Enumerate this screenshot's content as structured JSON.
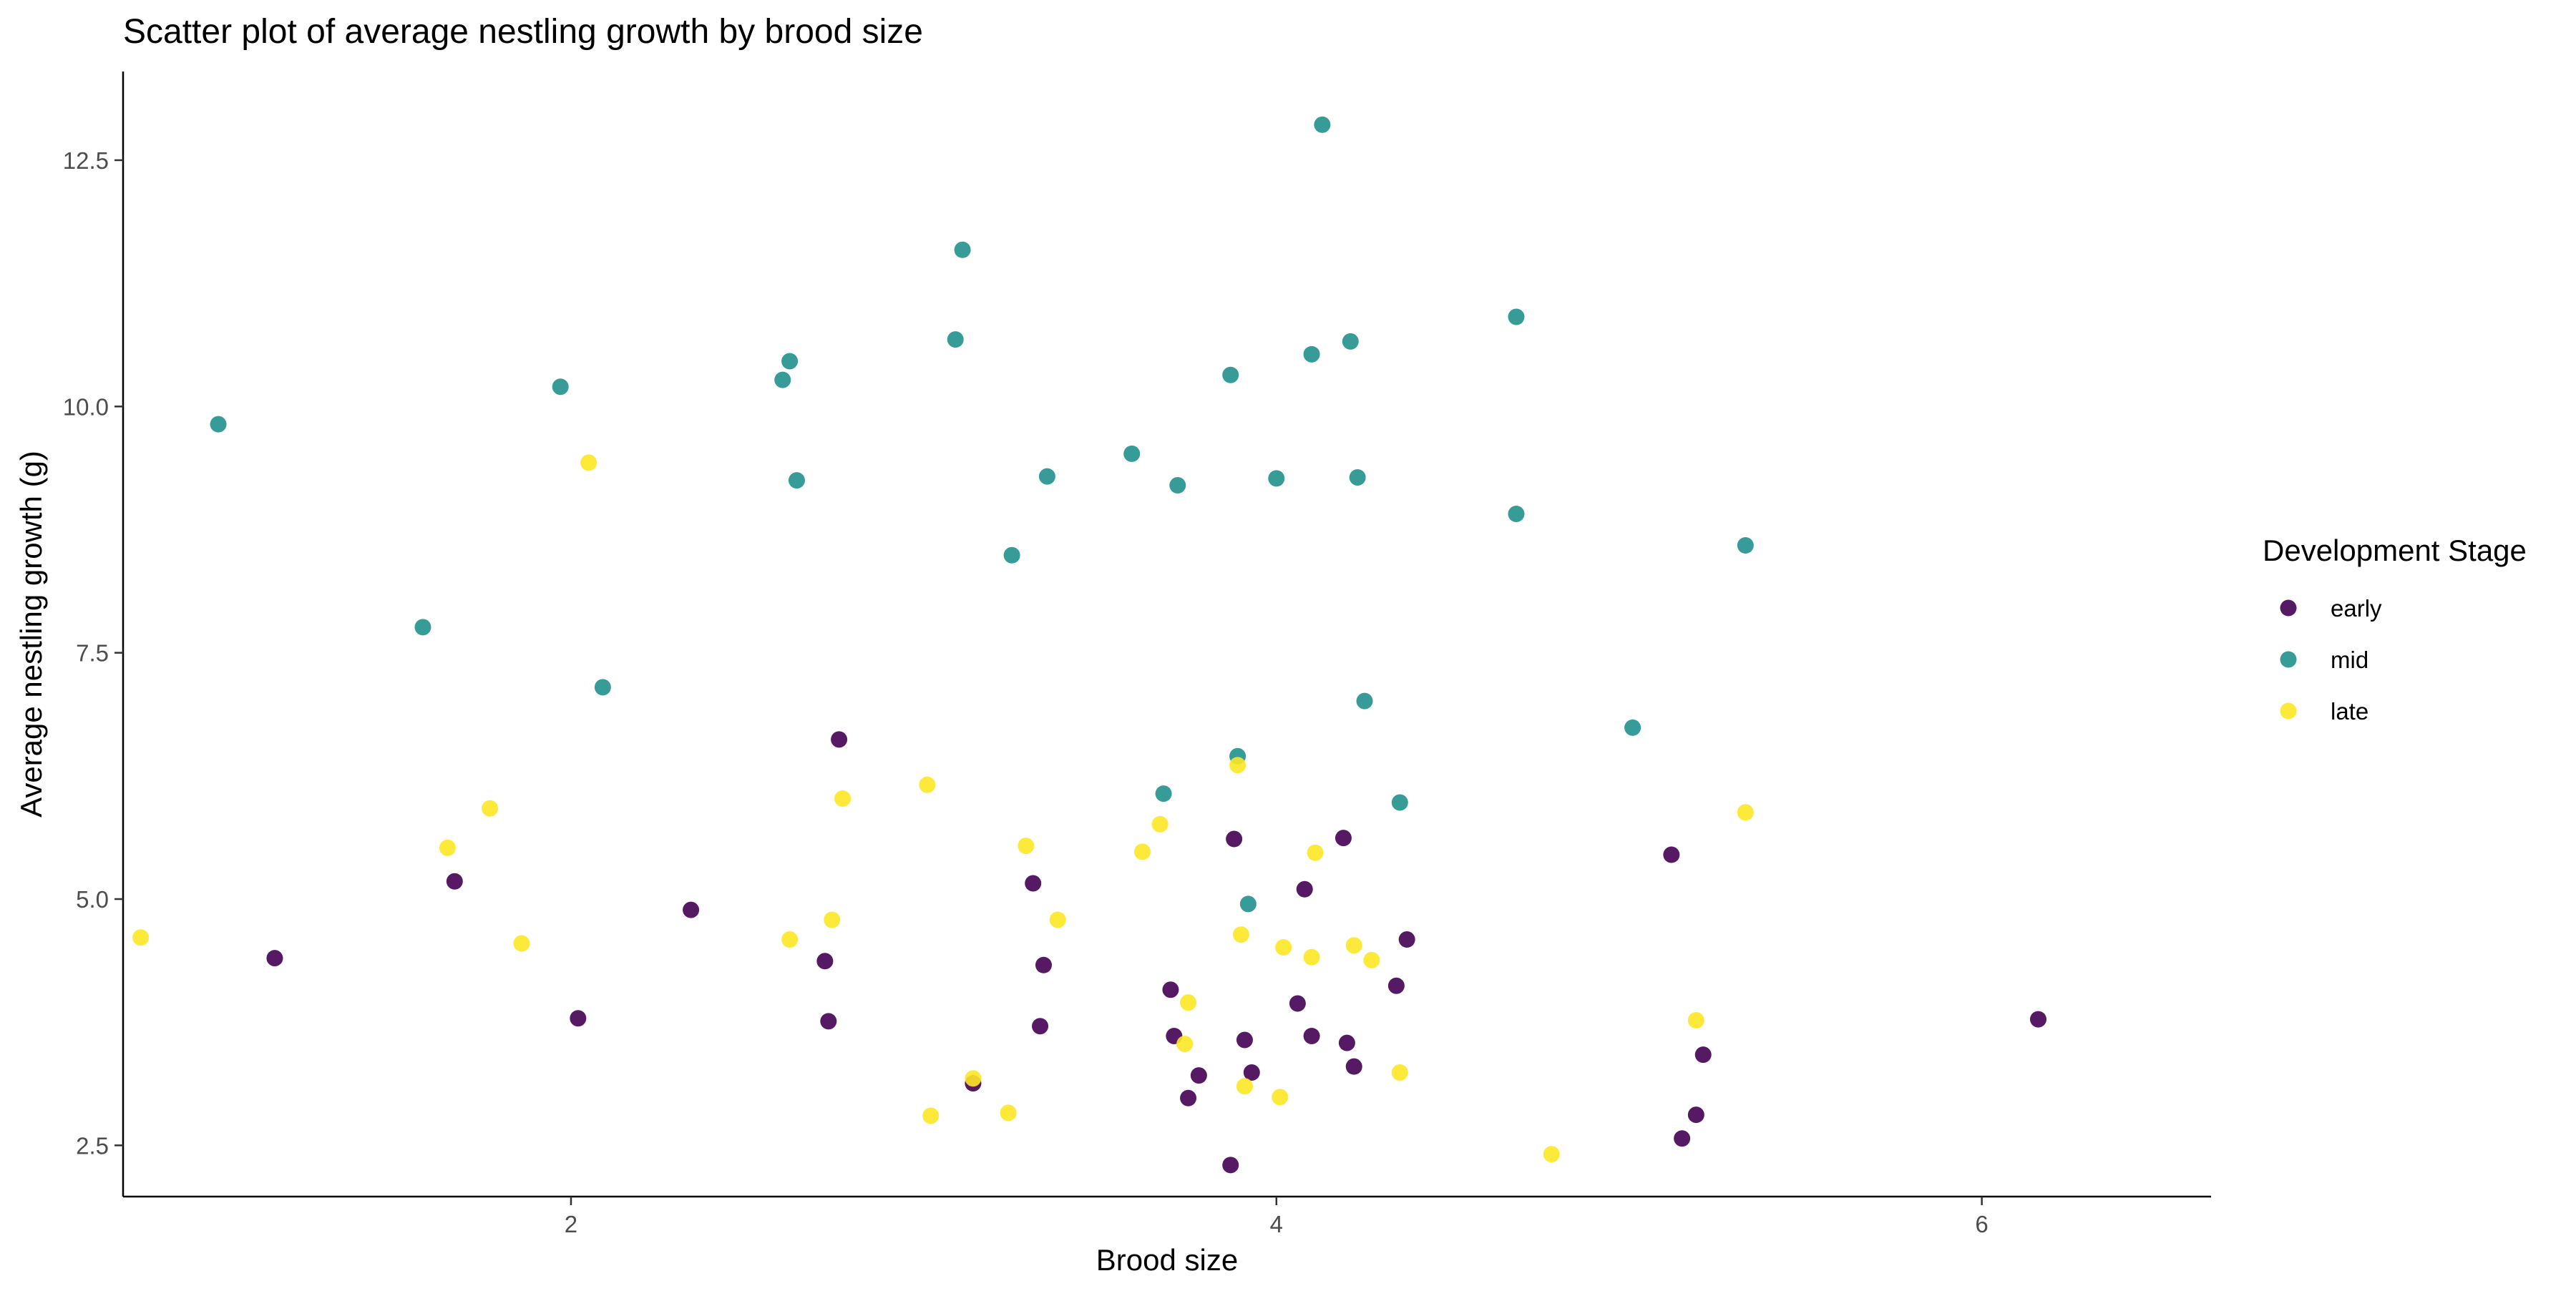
{
  "chart_data": {
    "type": "scatter",
    "title": "Scatter plot of average nestling growth by brood size",
    "xlabel": "Brood size",
    "ylabel": "Average nestling growth (g)",
    "xlim": [
      0.73,
      6.65
    ],
    "ylim": [
      1.98,
      13.4
    ],
    "x_ticks": [
      2,
      4,
      6
    ],
    "y_ticks": [
      2.5,
      5.0,
      7.5,
      10.0,
      12.5
    ],
    "x_tick_labels": [
      "2",
      "4",
      "6"
    ],
    "y_tick_labels": [
      "2.5",
      "5.0",
      "7.5",
      "10.0",
      "12.5"
    ],
    "grid": false,
    "legend": {
      "title": "Development Stage",
      "position": "right",
      "entries": [
        "early",
        "mid",
        "late"
      ]
    },
    "colors": {
      "early": "#440154",
      "mid": "#21908C",
      "late": "#FDE725"
    },
    "series": [
      {
        "name": "early",
        "points": [
          [
            1.16,
            4.4
          ],
          [
            1.67,
            5.18
          ],
          [
            2.02,
            3.79
          ],
          [
            2.34,
            4.89
          ],
          [
            2.72,
            4.37
          ],
          [
            2.73,
            3.76
          ],
          [
            2.76,
            6.62
          ],
          [
            3.14,
            3.13
          ],
          [
            3.31,
            5.16
          ],
          [
            3.33,
            3.71
          ],
          [
            3.34,
            4.33
          ],
          [
            3.7,
            4.08
          ],
          [
            3.71,
            3.61
          ],
          [
            3.75,
            2.98
          ],
          [
            3.78,
            3.21
          ],
          [
            3.87,
            2.3
          ],
          [
            3.88,
            5.61
          ],
          [
            3.91,
            3.57
          ],
          [
            3.93,
            3.24
          ],
          [
            4.06,
            3.94
          ],
          [
            4.08,
            5.1
          ],
          [
            4.1,
            3.61
          ],
          [
            4.19,
            5.62
          ],
          [
            4.2,
            3.54
          ],
          [
            4.22,
            3.3
          ],
          [
            4.34,
            4.12
          ],
          [
            4.37,
            4.59
          ],
          [
            5.12,
            5.45
          ],
          [
            5.15,
            2.57
          ],
          [
            5.19,
            2.81
          ],
          [
            5.21,
            3.42
          ],
          [
            6.16,
            3.78
          ]
        ]
      },
      {
        "name": "mid",
        "points": [
          [
            1.0,
            9.82
          ],
          [
            1.58,
            7.76
          ],
          [
            1.97,
            10.2
          ],
          [
            2.09,
            7.15
          ],
          [
            2.6,
            10.27
          ],
          [
            2.62,
            10.46
          ],
          [
            2.64,
            9.25
          ],
          [
            3.09,
            10.68
          ],
          [
            3.11,
            11.59
          ],
          [
            3.25,
            8.49
          ],
          [
            3.35,
            9.29
          ],
          [
            3.59,
            9.52
          ],
          [
            3.68,
            6.07
          ],
          [
            3.72,
            9.2
          ],
          [
            3.87,
            10.32
          ],
          [
            3.89,
            6.45
          ],
          [
            3.92,
            4.95
          ],
          [
            4.0,
            9.27
          ],
          [
            4.1,
            10.53
          ],
          [
            4.13,
            12.86
          ],
          [
            4.21,
            10.66
          ],
          [
            4.23,
            9.28
          ],
          [
            4.25,
            7.01
          ],
          [
            4.35,
            5.98
          ],
          [
            4.68,
            8.91
          ],
          [
            4.68,
            10.91
          ],
          [
            5.01,
            6.74
          ],
          [
            5.33,
            8.59
          ]
        ]
      },
      {
        "name": "late",
        "points": [
          [
            0.78,
            4.61
          ],
          [
            1.65,
            5.52
          ],
          [
            1.77,
            5.92
          ],
          [
            1.86,
            4.55
          ],
          [
            2.05,
            9.43
          ],
          [
            2.62,
            4.59
          ],
          [
            2.74,
            4.79
          ],
          [
            2.77,
            6.02
          ],
          [
            3.01,
            6.16
          ],
          [
            3.02,
            2.8
          ],
          [
            3.14,
            3.18
          ],
          [
            3.24,
            2.83
          ],
          [
            3.29,
            5.54
          ],
          [
            3.38,
            4.79
          ],
          [
            3.62,
            5.48
          ],
          [
            3.67,
            5.76
          ],
          [
            3.74,
            3.53
          ],
          [
            3.75,
            3.95
          ],
          [
            3.89,
            6.36
          ],
          [
            3.9,
            4.64
          ],
          [
            3.91,
            3.1
          ],
          [
            4.01,
            2.99
          ],
          [
            4.02,
            4.51
          ],
          [
            4.1,
            4.41
          ],
          [
            4.11,
            5.47
          ],
          [
            4.22,
            4.53
          ],
          [
            4.27,
            4.38
          ],
          [
            4.35,
            3.24
          ],
          [
            4.78,
            2.41
          ],
          [
            5.19,
            3.77
          ],
          [
            5.33,
            5.88
          ]
        ]
      }
    ]
  }
}
